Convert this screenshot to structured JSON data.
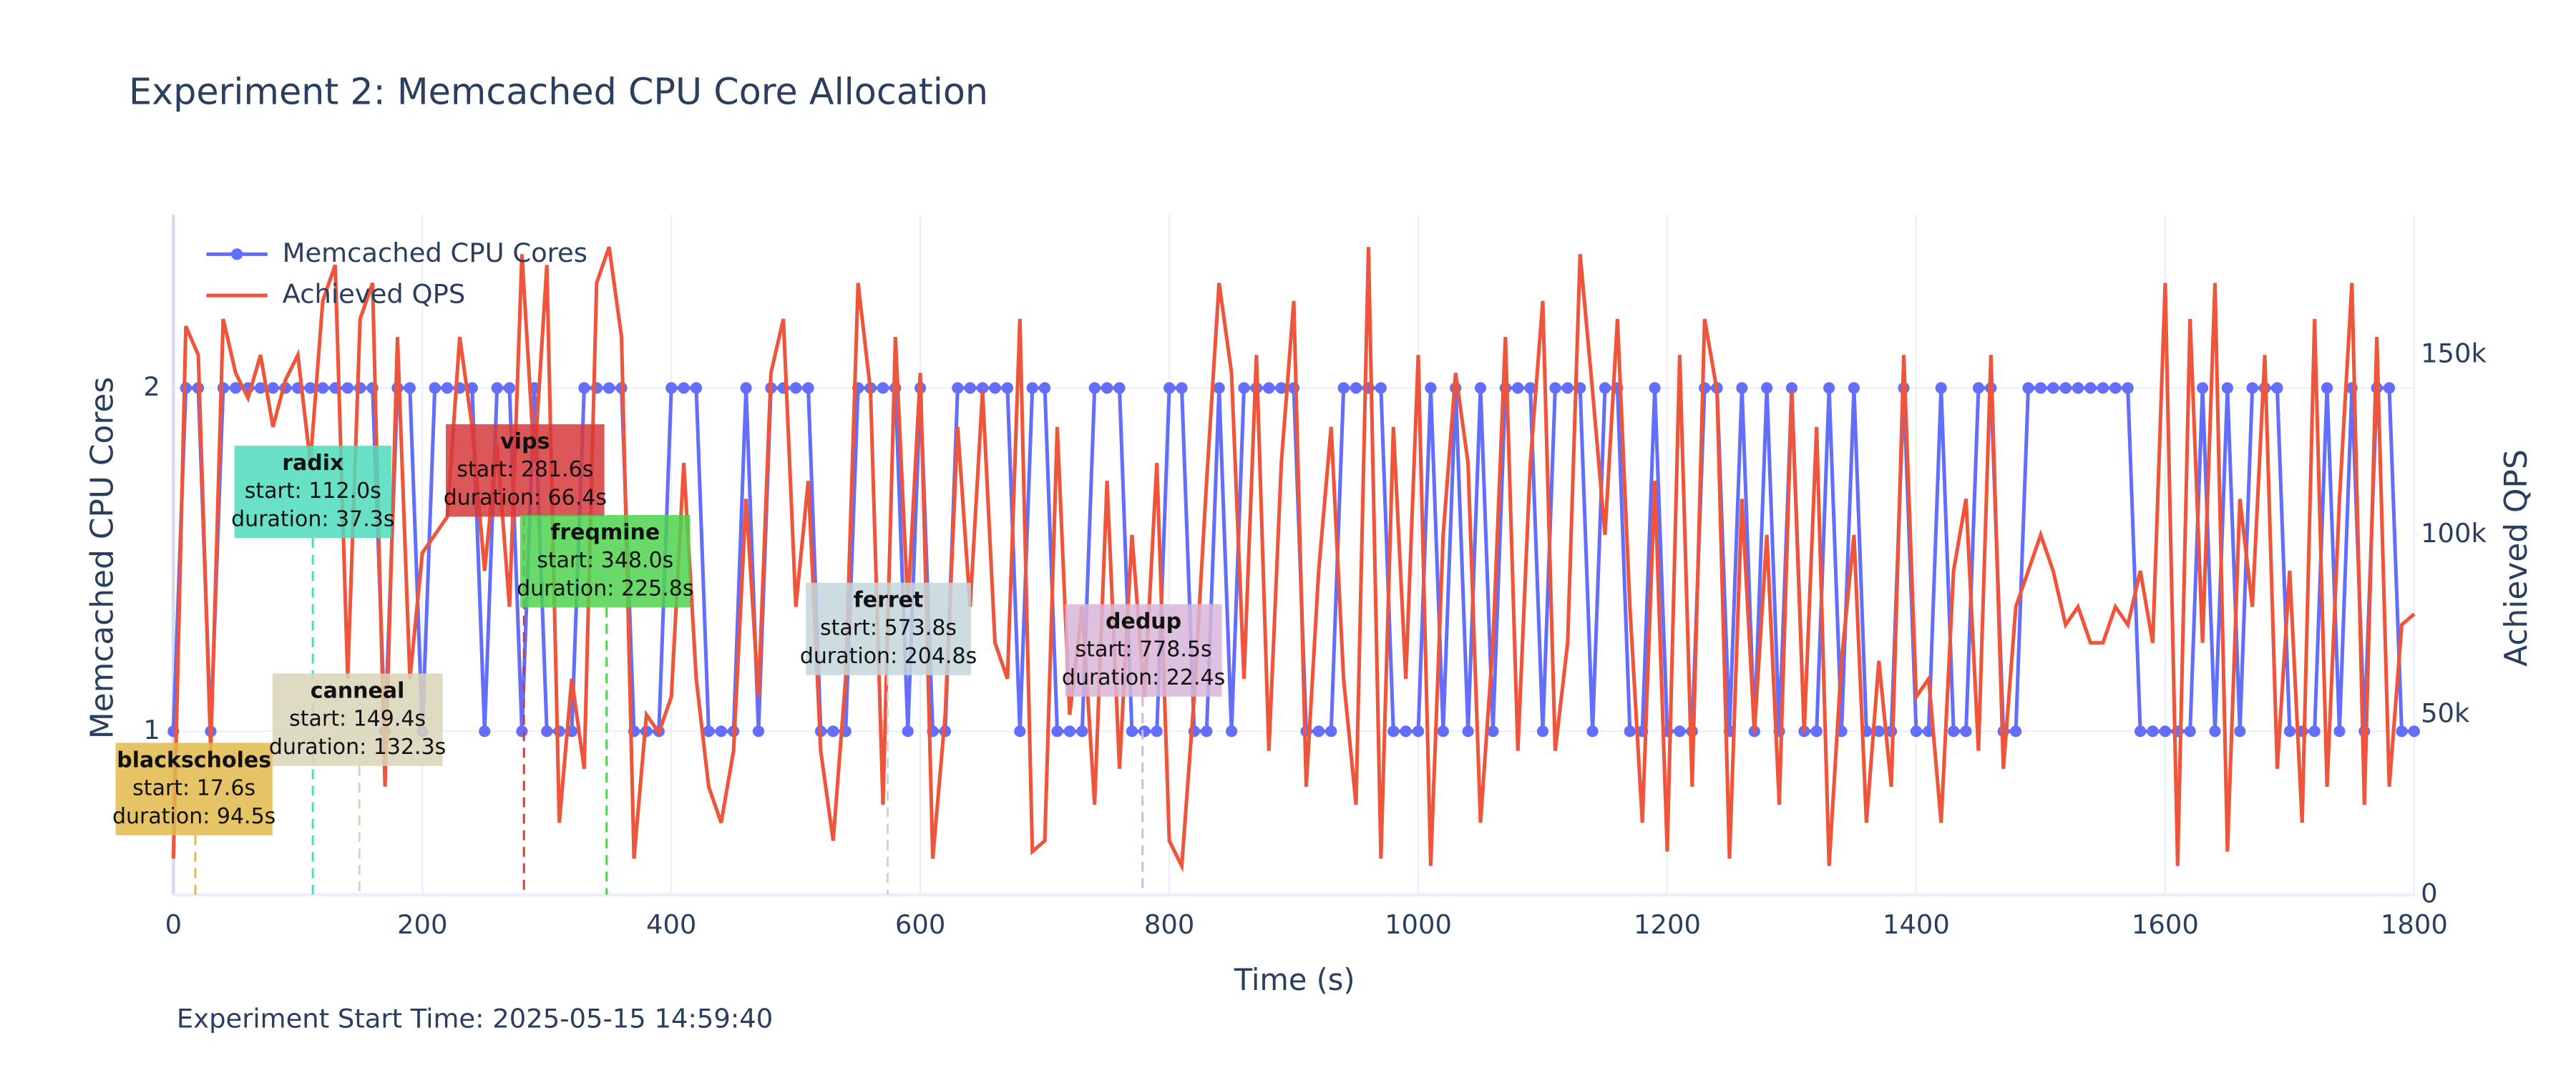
{
  "chart_data": {
    "type": "line",
    "title": "Experiment 2: Memcached CPU Core Allocation",
    "xlabel": "Time (s)",
    "ylabel": "Memcached CPU Cores",
    "y2label": "Achieved QPS",
    "footnote": "Experiment Start Time: 2025-05-15 14:59:40",
    "grid": true,
    "legend": "top-left",
    "xlim": [
      0,
      1800
    ],
    "xticks": [
      0,
      200,
      400,
      600,
      800,
      1000,
      1200,
      1400,
      1600,
      1800
    ],
    "ylim": [
      0.524,
      2.505
    ],
    "yticks": [
      1,
      2
    ],
    "y2lim": [
      0,
      189000
    ],
    "y2ticks": [
      0,
      {
        "value": 50000,
        "label": "50k"
      },
      {
        "value": 100000,
        "label": "100k"
      },
      {
        "value": 150000,
        "label": "150k"
      }
    ],
    "x": [
      0,
      10,
      20,
      30,
      40,
      50,
      60,
      70,
      80,
      90,
      100,
      110,
      120,
      130,
      140,
      150,
      160,
      170,
      180,
      190,
      200,
      210,
      220,
      230,
      240,
      250,
      260,
      270,
      280,
      290,
      300,
      310,
      320,
      330,
      340,
      350,
      360,
      370,
      380,
      390,
      400,
      410,
      420,
      430,
      440,
      450,
      460,
      470,
      480,
      490,
      500,
      510,
      520,
      530,
      540,
      550,
      560,
      570,
      580,
      590,
      600,
      610,
      620,
      630,
      640,
      650,
      660,
      670,
      680,
      690,
      700,
      710,
      720,
      730,
      740,
      750,
      760,
      770,
      780,
      790,
      800,
      810,
      820,
      830,
      840,
      850,
      860,
      870,
      880,
      890,
      900,
      910,
      920,
      930,
      940,
      950,
      960,
      970,
      980,
      990,
      1000,
      1010,
      1020,
      1030,
      1040,
      1050,
      1060,
      1070,
      1080,
      1090,
      1100,
      1110,
      1120,
      1130,
      1140,
      1150,
      1160,
      1170,
      1180,
      1190,
      1200,
      1210,
      1220,
      1230,
      1240,
      1250,
      1260,
      1270,
      1280,
      1290,
      1300,
      1310,
      1320,
      1330,
      1340,
      1350,
      1360,
      1370,
      1380,
      1390,
      1400,
      1410,
      1420,
      1430,
      1440,
      1450,
      1460,
      1470,
      1480,
      1490,
      1500,
      1510,
      1520,
      1530,
      1540,
      1550,
      1560,
      1570,
      1580,
      1590,
      1600,
      1610,
      1620,
      1630,
      1640,
      1650,
      1660,
      1670,
      1680,
      1690,
      1700,
      1710,
      1720,
      1730,
      1740,
      1750,
      1760,
      1770,
      1780,
      1790,
      1800
    ],
    "series": [
      {
        "name": "Memcached CPU Cores",
        "color": "#636efa",
        "marker": true,
        "values": [
          1,
          2,
          2,
          1,
          2,
          2,
          2,
          2,
          2,
          2,
          2,
          2,
          2,
          2,
          2,
          2,
          2,
          1,
          2,
          2,
          1,
          2,
          2,
          2,
          2,
          1,
          2,
          2,
          1,
          2,
          1,
          1,
          1,
          2,
          2,
          2,
          2,
          1,
          1,
          1,
          2,
          2,
          2,
          1,
          1,
          1,
          2,
          1,
          2,
          2,
          2,
          2,
          1,
          1,
          1,
          2,
          2,
          2,
          2,
          1,
          2,
          1,
          1,
          2,
          2,
          2,
          2,
          2,
          1,
          2,
          2,
          1,
          1,
          1,
          2,
          2,
          2,
          1,
          1,
          1,
          2,
          2,
          1,
          1,
          2,
          1,
          2,
          2,
          2,
          2,
          2,
          1,
          1,
          1,
          2,
          2,
          2,
          2,
          1,
          1,
          1,
          2,
          1,
          2,
          1,
          2,
          1,
          2,
          2,
          2,
          1,
          2,
          2,
          2,
          1,
          2,
          2,
          1,
          1,
          2,
          1,
          1,
          1,
          2,
          2,
          1,
          2,
          1,
          2,
          1,
          2,
          1,
          1,
          2,
          1,
          2,
          1,
          1,
          1,
          2,
          1,
          1,
          2,
          1,
          1,
          2,
          2,
          1,
          1,
          2,
          2,
          2,
          2,
          2,
          2,
          2,
          2,
          2,
          1,
          1,
          1,
          1,
          1,
          2,
          1,
          2,
          1,
          2,
          2,
          2,
          1,
          1,
          1,
          2,
          1,
          2,
          1,
          2,
          2,
          1,
          1
        ]
      },
      {
        "name": "Achieved QPS",
        "color": "#ef553b",
        "axis": "y2",
        "values": [
          10000,
          158000,
          150000,
          40000,
          160000,
          145000,
          138000,
          150000,
          130000,
          143000,
          150000,
          120000,
          165000,
          175000,
          60000,
          160000,
          170000,
          30000,
          155000,
          60000,
          95000,
          100000,
          105000,
          155000,
          130000,
          90000,
          125000,
          80000,
          178000,
          120000,
          175000,
          20000,
          60000,
          35000,
          170000,
          180000,
          155000,
          10000,
          50000,
          45000,
          55000,
          120000,
          60000,
          30000,
          20000,
          40000,
          110000,
          55000,
          145000,
          160000,
          80000,
          115000,
          40000,
          15000,
          60000,
          170000,
          140000,
          25000,
          155000,
          80000,
          145000,
          10000,
          50000,
          130000,
          80000,
          140000,
          70000,
          60000,
          160000,
          12000,
          15000,
          130000,
          50000,
          80000,
          25000,
          115000,
          35000,
          100000,
          55000,
          120000,
          15000,
          8000,
          55000,
          115000,
          170000,
          145000,
          60000,
          150000,
          40000,
          120000,
          165000,
          30000,
          90000,
          130000,
          60000,
          25000,
          180000,
          10000,
          130000,
          60000,
          150000,
          8000,
          100000,
          145000,
          120000,
          20000,
          70000,
          155000,
          40000,
          120000,
          165000,
          40000,
          70000,
          178000,
          140000,
          100000,
          160000,
          80000,
          20000,
          115000,
          12000,
          150000,
          30000,
          160000,
          140000,
          10000,
          110000,
          45000,
          100000,
          25000,
          140000,
          45000,
          130000,
          8000,
          65000,
          100000,
          20000,
          65000,
          30000,
          150000,
          55000,
          60000,
          20000,
          90000,
          110000,
          40000,
          150000,
          35000,
          80000,
          90000,
          100000,
          90000,
          75000,
          80000,
          70000,
          70000,
          80000,
          75000,
          90000,
          70000,
          170000,
          8000,
          160000,
          70000,
          170000,
          12000,
          110000,
          80000,
          150000,
          35000,
          90000,
          20000,
          160000,
          30000,
          110000,
          170000,
          25000,
          155000,
          30000,
          75000,
          78000
        ]
      }
    ],
    "annotations": [
      {
        "name": "blackscholes",
        "start": 17.6,
        "start_label": "start: 17.6s",
        "duration_label": "duration: 94.5s",
        "color": "#e2b84a"
      },
      {
        "name": "radix",
        "start": 112.0,
        "start_label": "start: 112.0s",
        "duration_label": "duration: 37.3s",
        "color": "#4fdcbc"
      },
      {
        "name": "canneal",
        "start": 149.4,
        "start_label": "start: 149.4s",
        "duration_label": "duration: 132.3s",
        "color": "#d9d5b9"
      },
      {
        "name": "vips",
        "start": 281.6,
        "start_label": "start: 281.6s",
        "duration_label": "duration: 66.4s",
        "color": "#d63a3a"
      },
      {
        "name": "freqmine",
        "start": 348.0,
        "start_label": "start: 348.0s",
        "duration_label": "duration: 225.8s",
        "color": "#4fd34f"
      },
      {
        "name": "ferret",
        "start": 573.8,
        "start_label": "start: 573.8s",
        "duration_label": "duration: 204.8s",
        "color": "#c4d6da"
      },
      {
        "name": "dedup",
        "start": 778.5,
        "start_label": "start: 778.5s",
        "duration_label": "duration: 22.4s",
        "color": "#d8b6d8"
      }
    ]
  }
}
